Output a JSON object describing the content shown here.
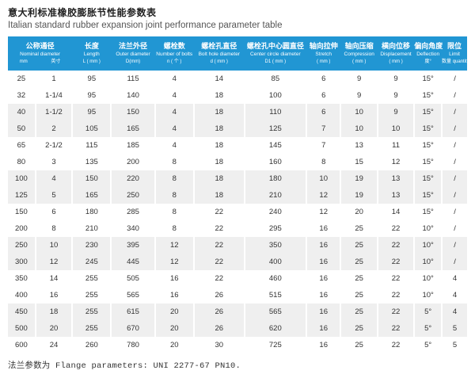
{
  "page": {
    "title_zh": "意大利标准橡胶膨胀节性能参数表",
    "title_en": "Italian standard rubber expansion joint performance parameter table",
    "footnote": "法兰参数为 Flange parameters: UNI 2277-67 PN10."
  },
  "colors": {
    "header_bg": "#2196d3",
    "stripe_bg": "#efefef",
    "header_text": "#ffffff",
    "body_text": "#333333"
  },
  "table": {
    "columns": [
      {
        "name": "nominal-diameter",
        "zh": "公称通径",
        "en": "Nominal diameter",
        "units": [
          "mm",
          "英寸"
        ],
        "colspan": 2
      },
      {
        "name": "length",
        "zh": "长度",
        "en": "Length",
        "units": [
          "L ( mm )"
        ]
      },
      {
        "name": "outer-diameter",
        "zh": "法兰外径",
        "en": "Outer diameter",
        "units": [
          "D(mm)"
        ]
      },
      {
        "name": "number-of-bolts",
        "zh": "螺栓数",
        "en": "Number of bolts",
        "units": [
          "n ( 个 )"
        ]
      },
      {
        "name": "bolt-hole-diameter",
        "zh": "螺栓孔直径",
        "en": "Bolt hole diameter",
        "units": [
          "d ( mm )"
        ]
      },
      {
        "name": "center-circle-diameter",
        "zh": "螺栓孔中心圆直径",
        "en": "Center circle diameter",
        "units": [
          "D1 ( mm )"
        ]
      },
      {
        "name": "stretch",
        "zh": "轴向拉伸",
        "en": "Stretch",
        "units": [
          "( mm )"
        ]
      },
      {
        "name": "compression",
        "zh": "轴向压缩",
        "en": "Compression",
        "units": [
          "( mm )"
        ]
      },
      {
        "name": "displacement",
        "zh": "横向位移",
        "en": "Displacement",
        "units": [
          "( mm )"
        ]
      },
      {
        "name": "deflection",
        "zh": "偏向角度",
        "en": "Deflection",
        "units": [
          "度°"
        ]
      },
      {
        "name": "limit",
        "zh": "限位",
        "en": "Limit",
        "units": [
          "数量 quantity"
        ]
      }
    ],
    "rows": [
      [
        "25",
        "1",
        "95",
        "115",
        "4",
        "14",
        "85",
        "6",
        "9",
        "9",
        "15°",
        "/"
      ],
      [
        "32",
        "1-1/4",
        "95",
        "140",
        "4",
        "18",
        "100",
        "6",
        "9",
        "9",
        "15°",
        "/"
      ],
      [
        "40",
        "1-1/2",
        "95",
        "150",
        "4",
        "18",
        "110",
        "6",
        "10",
        "9",
        "15°",
        "/"
      ],
      [
        "50",
        "2",
        "105",
        "165",
        "4",
        "18",
        "125",
        "7",
        "10",
        "10",
        "15°",
        "/"
      ],
      [
        "65",
        "2-1/2",
        "115",
        "185",
        "4",
        "18",
        "145",
        "7",
        "13",
        "11",
        "15°",
        "/"
      ],
      [
        "80",
        "3",
        "135",
        "200",
        "8",
        "18",
        "160",
        "8",
        "15",
        "12",
        "15°",
        "/"
      ],
      [
        "100",
        "4",
        "150",
        "220",
        "8",
        "18",
        "180",
        "10",
        "19",
        "13",
        "15°",
        "/"
      ],
      [
        "125",
        "5",
        "165",
        "250",
        "8",
        "18",
        "210",
        "12",
        "19",
        "13",
        "15°",
        "/"
      ],
      [
        "150",
        "6",
        "180",
        "285",
        "8",
        "22",
        "240",
        "12",
        "20",
        "14",
        "15°",
        "/"
      ],
      [
        "200",
        "8",
        "210",
        "340",
        "8",
        "22",
        "295",
        "16",
        "25",
        "22",
        "10°",
        "/"
      ],
      [
        "250",
        "10",
        "230",
        "395",
        "12",
        "22",
        "350",
        "16",
        "25",
        "22",
        "10°",
        "/"
      ],
      [
        "300",
        "12",
        "245",
        "445",
        "12",
        "22",
        "400",
        "16",
        "25",
        "22",
        "10°",
        "/"
      ],
      [
        "350",
        "14",
        "255",
        "505",
        "16",
        "22",
        "460",
        "16",
        "25",
        "22",
        "10°",
        "4"
      ],
      [
        "400",
        "16",
        "255",
        "565",
        "16",
        "26",
        "515",
        "16",
        "25",
        "22",
        "10°",
        "4"
      ],
      [
        "450",
        "18",
        "255",
        "615",
        "20",
        "26",
        "565",
        "16",
        "25",
        "22",
        "5°",
        "4"
      ],
      [
        "500",
        "20",
        "255",
        "670",
        "20",
        "26",
        "620",
        "16",
        "25",
        "22",
        "5°",
        "5"
      ],
      [
        "600",
        "24",
        "260",
        "780",
        "20",
        "30",
        "725",
        "16",
        "25",
        "22",
        "5°",
        "5"
      ]
    ]
  }
}
